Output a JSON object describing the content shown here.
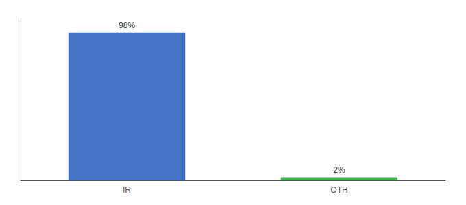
{
  "chart_data": {
    "type": "bar",
    "categories": [
      "IR",
      "OTH"
    ],
    "values": [
      98,
      2
    ],
    "colors": [
      "#4472c4",
      "#3cb54a"
    ],
    "value_labels": [
      "98%",
      "2%"
    ],
    "data_labels": true,
    "ylim": [
      0,
      106
    ],
    "grid": false,
    "tick_labels": "x"
  }
}
